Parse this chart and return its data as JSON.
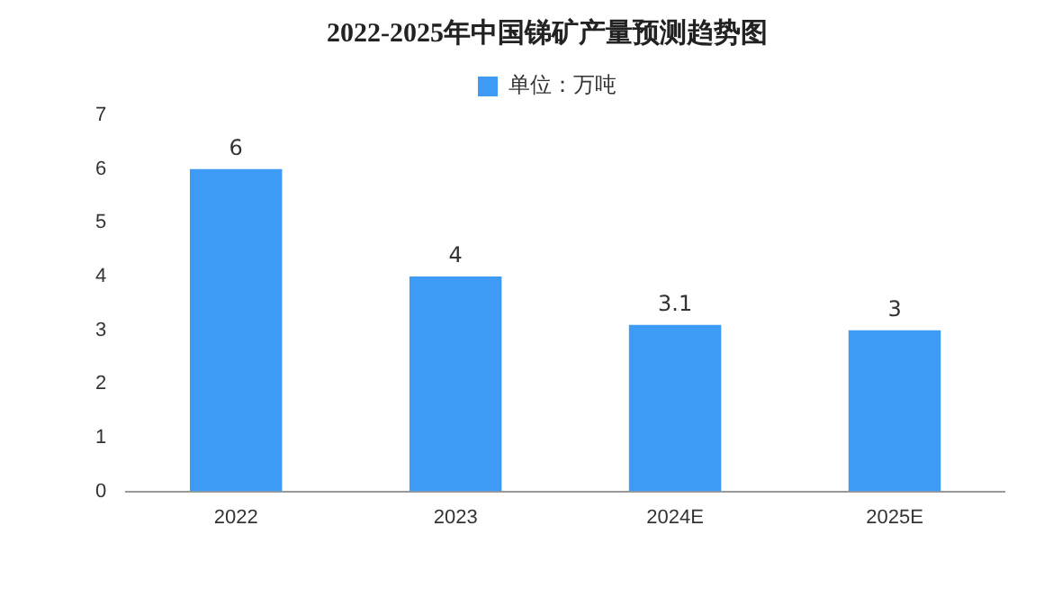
{
  "chart_data": {
    "type": "bar",
    "title": "2022-2025年中国锑矿产量预测趋势图",
    "categories": [
      "2022",
      "2023",
      "2024E",
      "2025E"
    ],
    "series": [
      {
        "name": "单位：万吨",
        "color": "#3d9bf5",
        "values": [
          6,
          4,
          3.1,
          3
        ]
      }
    ],
    "ylim": [
      0,
      7
    ],
    "yticks": [
      0,
      1,
      2,
      3,
      4,
      5,
      6,
      7
    ],
    "grid": false,
    "legend": "top",
    "data_labels": true
  }
}
